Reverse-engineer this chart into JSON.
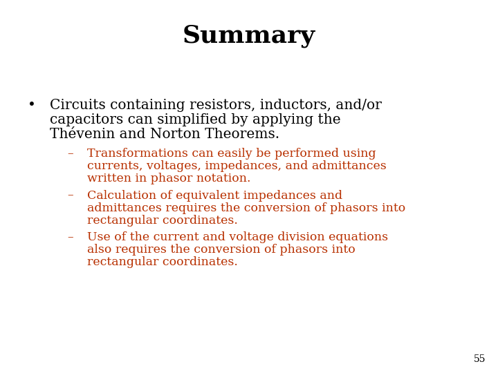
{
  "title": "Summary",
  "title_fontsize": 26,
  "title_fontweight": "bold",
  "title_color": "#000000",
  "background_color": "#ffffff",
  "bullet_color": "#000000",
  "bullet_fontsize": 14.5,
  "sub_color": "#b83000",
  "sub_fontsize": 12.5,
  "page_number": "55",
  "page_number_fontsize": 10,
  "page_number_color": "#000000",
  "bullet_dot": "•",
  "bullet_text_lines": [
    "Circuits containing resistors, inductors, and/or",
    "capacitors can simplified by applying the",
    "Thévenin and Norton Theorems."
  ],
  "sub_items": [
    [
      "Transformations can easily be performed using",
      "currents, voltages, impedances, and admittances",
      "written in phasor notation."
    ],
    [
      "Calculation of equivalent impedances and",
      "admittances requires the conversion of phasors into",
      "rectangular coordinates."
    ],
    [
      "Use of the current and voltage division equations",
      "also requires the conversion of phasors into",
      "rectangular coordinates."
    ]
  ]
}
